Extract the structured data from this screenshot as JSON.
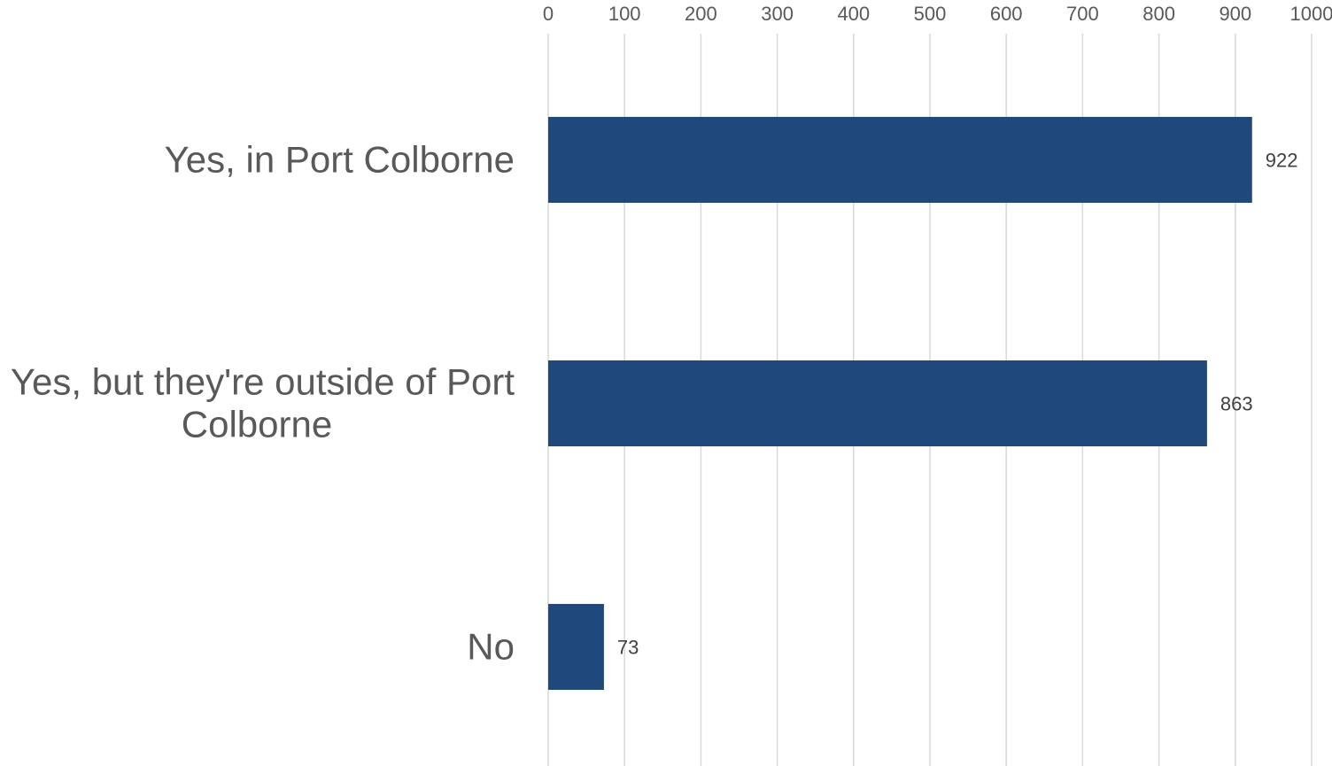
{
  "chart_data": {
    "type": "bar",
    "orientation": "horizontal",
    "categories": [
      "Yes, in Port Colborne",
      "Yes, but they're outside of Port Colborne",
      "No"
    ],
    "category_lines": [
      [
        "Yes, in Port Colborne"
      ],
      [
        "Yes, but they're outside of Port",
        "Colborne"
      ],
      [
        "No"
      ]
    ],
    "values": [
      922,
      863,
      73
    ],
    "data_labels": [
      "922",
      "863",
      "73"
    ],
    "xlim": [
      0,
      1000
    ],
    "x_ticks": [
      0,
      100,
      200,
      300,
      400,
      500,
      600,
      700,
      800,
      900,
      1000
    ],
    "x_tick_labels": [
      "0",
      "100",
      "200",
      "300",
      "400",
      "500",
      "600",
      "700",
      "800",
      "900",
      "1000"
    ],
    "x_axis_position": "top",
    "grid": true,
    "legend": "none",
    "title": "",
    "xlabel": "",
    "ylabel": "",
    "colors": {
      "bar": "#1f487c",
      "grid": "#d9d9d9",
      "text": "#595959",
      "data_label": "#404040"
    }
  }
}
